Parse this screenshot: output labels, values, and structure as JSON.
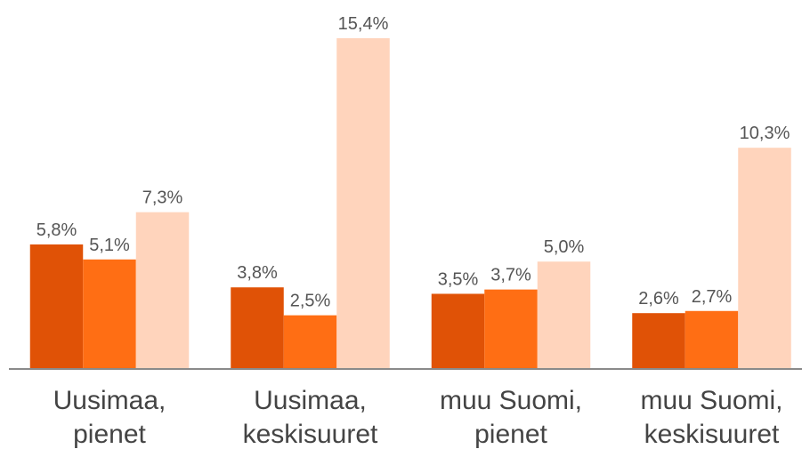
{
  "chart_data": {
    "type": "bar",
    "categories": [
      [
        "Uusimaa,",
        "pienet"
      ],
      [
        "Uusimaa,",
        "keskisuuret"
      ],
      [
        "muu Suomi,",
        "pienet"
      ],
      [
        "muu Suomi,",
        "keskisuuret"
      ]
    ],
    "series": [
      {
        "color": "#e05206",
        "values": [
          5.8,
          3.8,
          3.5,
          2.6
        ],
        "value_labels": [
          "5,8%",
          "3,8%",
          "3,5%",
          "2,6%"
        ]
      },
      {
        "color": "#ff6e14",
        "values": [
          5.1,
          2.5,
          3.7,
          2.7
        ],
        "value_labels": [
          "5,1%",
          "2,5%",
          "3,7%",
          "2,7%"
        ]
      },
      {
        "color": "#ffd4bc",
        "values": [
          7.3,
          15.4,
          5.0,
          10.3
        ],
        "value_labels": [
          "7,3%",
          "15,4%",
          "5,0%",
          "10,3%"
        ]
      }
    ],
    "ylim": [
      0,
      16
    ]
  }
}
